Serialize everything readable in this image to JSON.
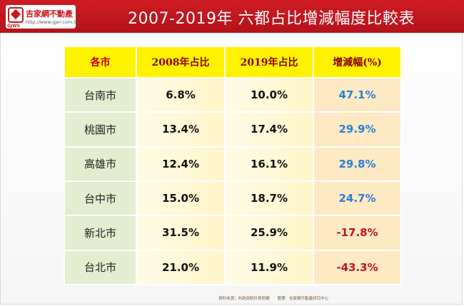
{
  "header": {
    "title": "2007-2019年 六都占比增減幅度比較表",
    "logo_name": "吉家網不動產",
    "logo_url": "http://www.gjer.com.tw",
    "logo_caption": "GJWS"
  },
  "table": {
    "headers": [
      "各市",
      "2008年占比",
      "2019年占比",
      "增減幅(%)"
    ],
    "rows": [
      {
        "city": "台南市",
        "y2008": "6.8%",
        "y2019": "10.0%",
        "change": "47.1%",
        "trend": "up"
      },
      {
        "city": "桃園市",
        "y2008": "13.4%",
        "y2019": "17.4%",
        "change": "29.9%",
        "trend": "up"
      },
      {
        "city": "高雄市",
        "y2008": "12.4%",
        "y2019": "16.1%",
        "change": "29.8%",
        "trend": "up"
      },
      {
        "city": "台中市",
        "y2008": "15.0%",
        "y2019": "18.7%",
        "change": "24.7%",
        "trend": "up"
      },
      {
        "city": "新北市",
        "y2008": "31.5%",
        "y2019": "25.9%",
        "change": "-17.8%",
        "trend": "down"
      },
      {
        "city": "台北市",
        "y2008": "21.0%",
        "y2019": "11.9%",
        "change": "-43.3%",
        "trend": "down"
      }
    ]
  },
  "colors": {
    "positive": "#2a7fd4",
    "negative": "#c0141c",
    "header_bg": "#fff200",
    "brand": "#c8161d"
  },
  "footer": {
    "source": "資料來源：內政部統計資訊網　　整理：吉家網不動產研究中心"
  }
}
